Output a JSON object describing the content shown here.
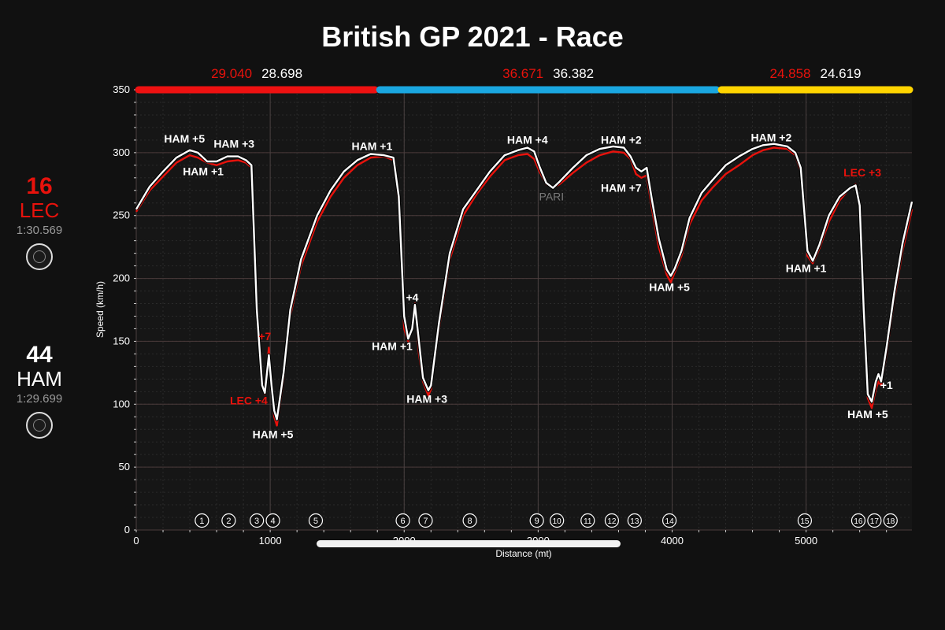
{
  "title": "British GP 2021 - Race",
  "drivers": [
    {
      "number": "16",
      "code": "LEC",
      "lap_time": "1:30.569",
      "color": "#e8120c"
    },
    {
      "number": "44",
      "code": "HAM",
      "lap_time": "1:29.699",
      "color": "#ffffff"
    }
  ],
  "icons": {
    "tyre": "tyre-icon"
  },
  "sectors": [
    {
      "color": "#ee1111",
      "lec_time": "29.040",
      "ham_time": "28.698",
      "start": 0,
      "end": 1800
    },
    {
      "color": "#1aa7e0",
      "lec_time": "36.671",
      "ham_time": "36.382",
      "start": 1800,
      "end": 4350
    },
    {
      "color": "#ffd400",
      "lec_time": "24.858",
      "ham_time": "24.619",
      "start": 4350,
      "end": 5790
    }
  ],
  "corners": [
    {
      "label": "1",
      "x": 490
    },
    {
      "label": "2",
      "x": 690
    },
    {
      "label": "3",
      "x": 900
    },
    {
      "label": "4",
      "x": 1020
    },
    {
      "label": "5",
      "x": 1340
    },
    {
      "label": "6",
      "x": 1990
    },
    {
      "label": "7",
      "x": 2160
    },
    {
      "label": "8",
      "x": 2490
    },
    {
      "label": "9",
      "x": 2990
    },
    {
      "label": "10",
      "x": 3140
    },
    {
      "label": "11",
      "x": 3370
    },
    {
      "label": "12",
      "x": 3550
    },
    {
      "label": "13",
      "x": 3720
    },
    {
      "label": "14",
      "x": 3980
    },
    {
      "label": "15",
      "x": 4990
    },
    {
      "label": "16",
      "x": 5390
    },
    {
      "label": "17",
      "x": 5510
    },
    {
      "label": "18",
      "x": 5630
    }
  ],
  "annotations": [
    {
      "text": "HAM +5",
      "x": 360,
      "y": 308,
      "color": "#ffffff"
    },
    {
      "text": "HAM +3",
      "x": 730,
      "y": 304,
      "color": "#ffffff"
    },
    {
      "text": "HAM +1",
      "x": 500,
      "y": 282,
      "color": "#ffffff"
    },
    {
      "text": "+7",
      "x": 960,
      "y": 151,
      "color": "#e8120c"
    },
    {
      "text": "LEC +4",
      "x": 840,
      "y": 100,
      "color": "#e8120c"
    },
    {
      "text": "HAM +5",
      "x": 1020,
      "y": 73,
      "color": "#ffffff"
    },
    {
      "text": "HAM +1",
      "x": 1760,
      "y": 302,
      "color": "#ffffff"
    },
    {
      "text": "+4",
      "x": 2060,
      "y": 182,
      "color": "#ffffff"
    },
    {
      "text": "HAM +1",
      "x": 1910,
      "y": 143,
      "color": "#ffffff"
    },
    {
      "text": "HAM +3",
      "x": 2170,
      "y": 101,
      "color": "#ffffff"
    },
    {
      "text": "HAM +4",
      "x": 2920,
      "y": 307,
      "color": "#ffffff"
    },
    {
      "text": "PARI",
      "x": 3100,
      "y": 262,
      "color": "#7a7a7a"
    },
    {
      "text": "HAM +2",
      "x": 3620,
      "y": 307,
      "color": "#ffffff"
    },
    {
      "text": "HAM +7",
      "x": 3620,
      "y": 269,
      "color": "#ffffff"
    },
    {
      "text": "HAM +5",
      "x": 3980,
      "y": 190,
      "color": "#ffffff"
    },
    {
      "text": "HAM +2",
      "x": 4740,
      "y": 309,
      "color": "#ffffff"
    },
    {
      "text": "LEC +3",
      "x": 5420,
      "y": 281,
      "color": "#e8120c"
    },
    {
      "text": "HAM +1",
      "x": 5000,
      "y": 205,
      "color": "#ffffff"
    },
    {
      "text": "+1",
      "x": 5600,
      "y": 112,
      "color": "#ffffff"
    },
    {
      "text": "HAM +5",
      "x": 5460,
      "y": 89,
      "color": "#ffffff"
    }
  ],
  "chart_data": {
    "type": "line",
    "title": "British GP 2021 - Race",
    "xlabel": "Distance (mt)",
    "ylabel": "Speed (km/h)",
    "xlim": [
      0,
      5790
    ],
    "ylim": [
      0,
      350
    ],
    "xticks": [
      0,
      1000,
      2000,
      3000,
      4000,
      5000
    ],
    "yticks": [
      0,
      50,
      100,
      150,
      200,
      250,
      300,
      350
    ],
    "grid": true,
    "series": [
      {
        "name": "LEC",
        "color": "#e8120c",
        "points": [
          [
            0,
            253
          ],
          [
            100,
            270
          ],
          [
            200,
            281
          ],
          [
            300,
            292
          ],
          [
            400,
            298
          ],
          [
            460,
            296
          ],
          [
            530,
            292
          ],
          [
            600,
            290
          ],
          [
            680,
            293
          ],
          [
            760,
            294
          ],
          [
            820,
            292
          ],
          [
            860,
            288
          ],
          [
            900,
            180
          ],
          [
            940,
            120
          ],
          [
            960,
            108
          ],
          [
            990,
            145
          ],
          [
            1010,
            112
          ],
          [
            1030,
            90
          ],
          [
            1050,
            83
          ],
          [
            1100,
            120
          ],
          [
            1150,
            170
          ],
          [
            1230,
            210
          ],
          [
            1350,
            245
          ],
          [
            1450,
            265
          ],
          [
            1550,
            280
          ],
          [
            1650,
            290
          ],
          [
            1750,
            296
          ],
          [
            1850,
            297
          ],
          [
            1920,
            294
          ],
          [
            1960,
            260
          ],
          [
            2000,
            160
          ],
          [
            2030,
            150
          ],
          [
            2060,
            160
          ],
          [
            2080,
            180
          ],
          [
            2110,
            140
          ],
          [
            2140,
            118
          ],
          [
            2180,
            107
          ],
          [
            2200,
            112
          ],
          [
            2260,
            160
          ],
          [
            2340,
            215
          ],
          [
            2440,
            250
          ],
          [
            2540,
            267
          ],
          [
            2640,
            281
          ],
          [
            2750,
            294
          ],
          [
            2850,
            298
          ],
          [
            2920,
            299
          ],
          [
            2970,
            295
          ],
          [
            3010,
            285
          ],
          [
            3060,
            275
          ],
          [
            3110,
            272
          ],
          [
            3160,
            275
          ],
          [
            3260,
            284
          ],
          [
            3360,
            292
          ],
          [
            3460,
            298
          ],
          [
            3560,
            301
          ],
          [
            3640,
            300
          ],
          [
            3690,
            295
          ],
          [
            3730,
            283
          ],
          [
            3770,
            280
          ],
          [
            3810,
            282
          ],
          [
            3850,
            255
          ],
          [
            3900,
            225
          ],
          [
            3960,
            203
          ],
          [
            3990,
            197
          ],
          [
            4020,
            205
          ],
          [
            4070,
            218
          ],
          [
            4130,
            243
          ],
          [
            4220,
            262
          ],
          [
            4300,
            272
          ],
          [
            4400,
            283
          ],
          [
            4500,
            290
          ],
          [
            4600,
            298
          ],
          [
            4680,
            302
          ],
          [
            4760,
            304
          ],
          [
            4860,
            303
          ],
          [
            4920,
            298
          ],
          [
            4960,
            285
          ],
          [
            5010,
            218
          ],
          [
            5050,
            212
          ],
          [
            5100,
            224
          ],
          [
            5170,
            245
          ],
          [
            5250,
            262
          ],
          [
            5330,
            272
          ],
          [
            5370,
            275
          ],
          [
            5400,
            260
          ],
          [
            5430,
            180
          ],
          [
            5460,
            105
          ],
          [
            5490,
            97
          ],
          [
            5520,
            112
          ],
          [
            5540,
            118
          ],
          [
            5560,
            115
          ],
          [
            5600,
            140
          ],
          [
            5660,
            185
          ],
          [
            5720,
            222
          ],
          [
            5790,
            255
          ]
        ]
      },
      {
        "name": "HAM",
        "color": "#ffffff",
        "points": [
          [
            0,
            255
          ],
          [
            100,
            273
          ],
          [
            200,
            285
          ],
          [
            300,
            296
          ],
          [
            400,
            302
          ],
          [
            460,
            300
          ],
          [
            530,
            293
          ],
          [
            600,
            293
          ],
          [
            680,
            297
          ],
          [
            760,
            297
          ],
          [
            820,
            294
          ],
          [
            860,
            290
          ],
          [
            900,
            175
          ],
          [
            940,
            115
          ],
          [
            960,
            109
          ],
          [
            990,
            139
          ],
          [
            1010,
            115
          ],
          [
            1030,
            95
          ],
          [
            1050,
            88
          ],
          [
            1100,
            125
          ],
          [
            1150,
            175
          ],
          [
            1230,
            215
          ],
          [
            1350,
            250
          ],
          [
            1450,
            270
          ],
          [
            1550,
            285
          ],
          [
            1650,
            294
          ],
          [
            1750,
            299
          ],
          [
            1850,
            298
          ],
          [
            1920,
            296
          ],
          [
            1960,
            265
          ],
          [
            2000,
            170
          ],
          [
            2030,
            152
          ],
          [
            2060,
            160
          ],
          [
            2080,
            179
          ],
          [
            2110,
            150
          ],
          [
            2140,
            121
          ],
          [
            2180,
            111
          ],
          [
            2200,
            115
          ],
          [
            2260,
            165
          ],
          [
            2340,
            220
          ],
          [
            2440,
            255
          ],
          [
            2540,
            270
          ],
          [
            2640,
            285
          ],
          [
            2750,
            298
          ],
          [
            2850,
            302
          ],
          [
            2920,
            304
          ],
          [
            2970,
            301
          ],
          [
            3010,
            289
          ],
          [
            3060,
            276
          ],
          [
            3110,
            272
          ],
          [
            3160,
            277
          ],
          [
            3260,
            288
          ],
          [
            3360,
            298
          ],
          [
            3460,
            303
          ],
          [
            3560,
            305
          ],
          [
            3640,
            304
          ],
          [
            3690,
            297
          ],
          [
            3730,
            288
          ],
          [
            3770,
            285
          ],
          [
            3810,
            288
          ],
          [
            3850,
            262
          ],
          [
            3900,
            232
          ],
          [
            3960,
            207
          ],
          [
            3990,
            202
          ],
          [
            4020,
            208
          ],
          [
            4070,
            222
          ],
          [
            4130,
            248
          ],
          [
            4220,
            268
          ],
          [
            4300,
            278
          ],
          [
            4400,
            290
          ],
          [
            4500,
            297
          ],
          [
            4600,
            303
          ],
          [
            4680,
            306
          ],
          [
            4760,
            307
          ],
          [
            4860,
            305
          ],
          [
            4920,
            300
          ],
          [
            4960,
            288
          ],
          [
            5010,
            222
          ],
          [
            5050,
            214
          ],
          [
            5100,
            227
          ],
          [
            5170,
            250
          ],
          [
            5250,
            265
          ],
          [
            5330,
            272
          ],
          [
            5370,
            274
          ],
          [
            5400,
            258
          ],
          [
            5430,
            175
          ],
          [
            5460,
            108
          ],
          [
            5490,
            102
          ],
          [
            5520,
            118
          ],
          [
            5540,
            124
          ],
          [
            5560,
            118
          ],
          [
            5600,
            145
          ],
          [
            5660,
            190
          ],
          [
            5720,
            228
          ],
          [
            5790,
            261
          ]
        ]
      }
    ]
  }
}
